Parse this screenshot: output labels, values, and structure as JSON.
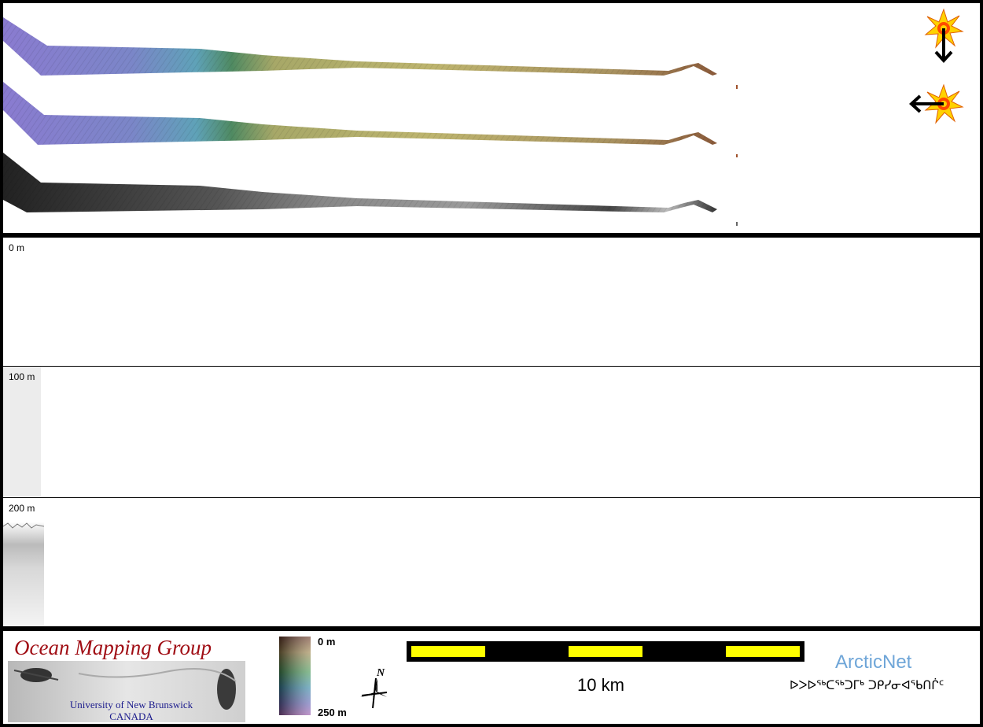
{
  "map_panel": {
    "swaths": [
      {
        "type": "sun-illuminated bathymetry (light from north)"
      },
      {
        "type": "sun-illuminated bathymetry (light from east)"
      },
      {
        "type": "backscatter"
      }
    ],
    "illumination_icons": [
      {
        "name": "sun-from-north",
        "arrow": "down"
      },
      {
        "name": "sun-from-east",
        "arrow": "left"
      }
    ]
  },
  "profile_panel": {
    "depth_labels": [
      "0 m",
      "100 m",
      "200 m"
    ]
  },
  "legend": {
    "omg_title": "Ocean Mapping Group",
    "omg_university": "University of New Brunswick",
    "omg_country": "CANADA",
    "colorbar_top": "0 m",
    "colorbar_bottom": "250 m",
    "north_label": "N",
    "scale_label": "10 km",
    "arcticnet_title": "ArcticNet",
    "arcticnet_inuktitut": "ᐅᐳᐅᖅᑕᖅᑐᒥᒃ ᑐᑭᓯᓂᐊᖃᑎᒌᑦ",
    "colors": {
      "omg_red": "#a00d14",
      "omg_blue": "#1a1a8c",
      "arcticnet_blue": "#6fa6d8",
      "scale_yellow": "#ffff00"
    }
  }
}
